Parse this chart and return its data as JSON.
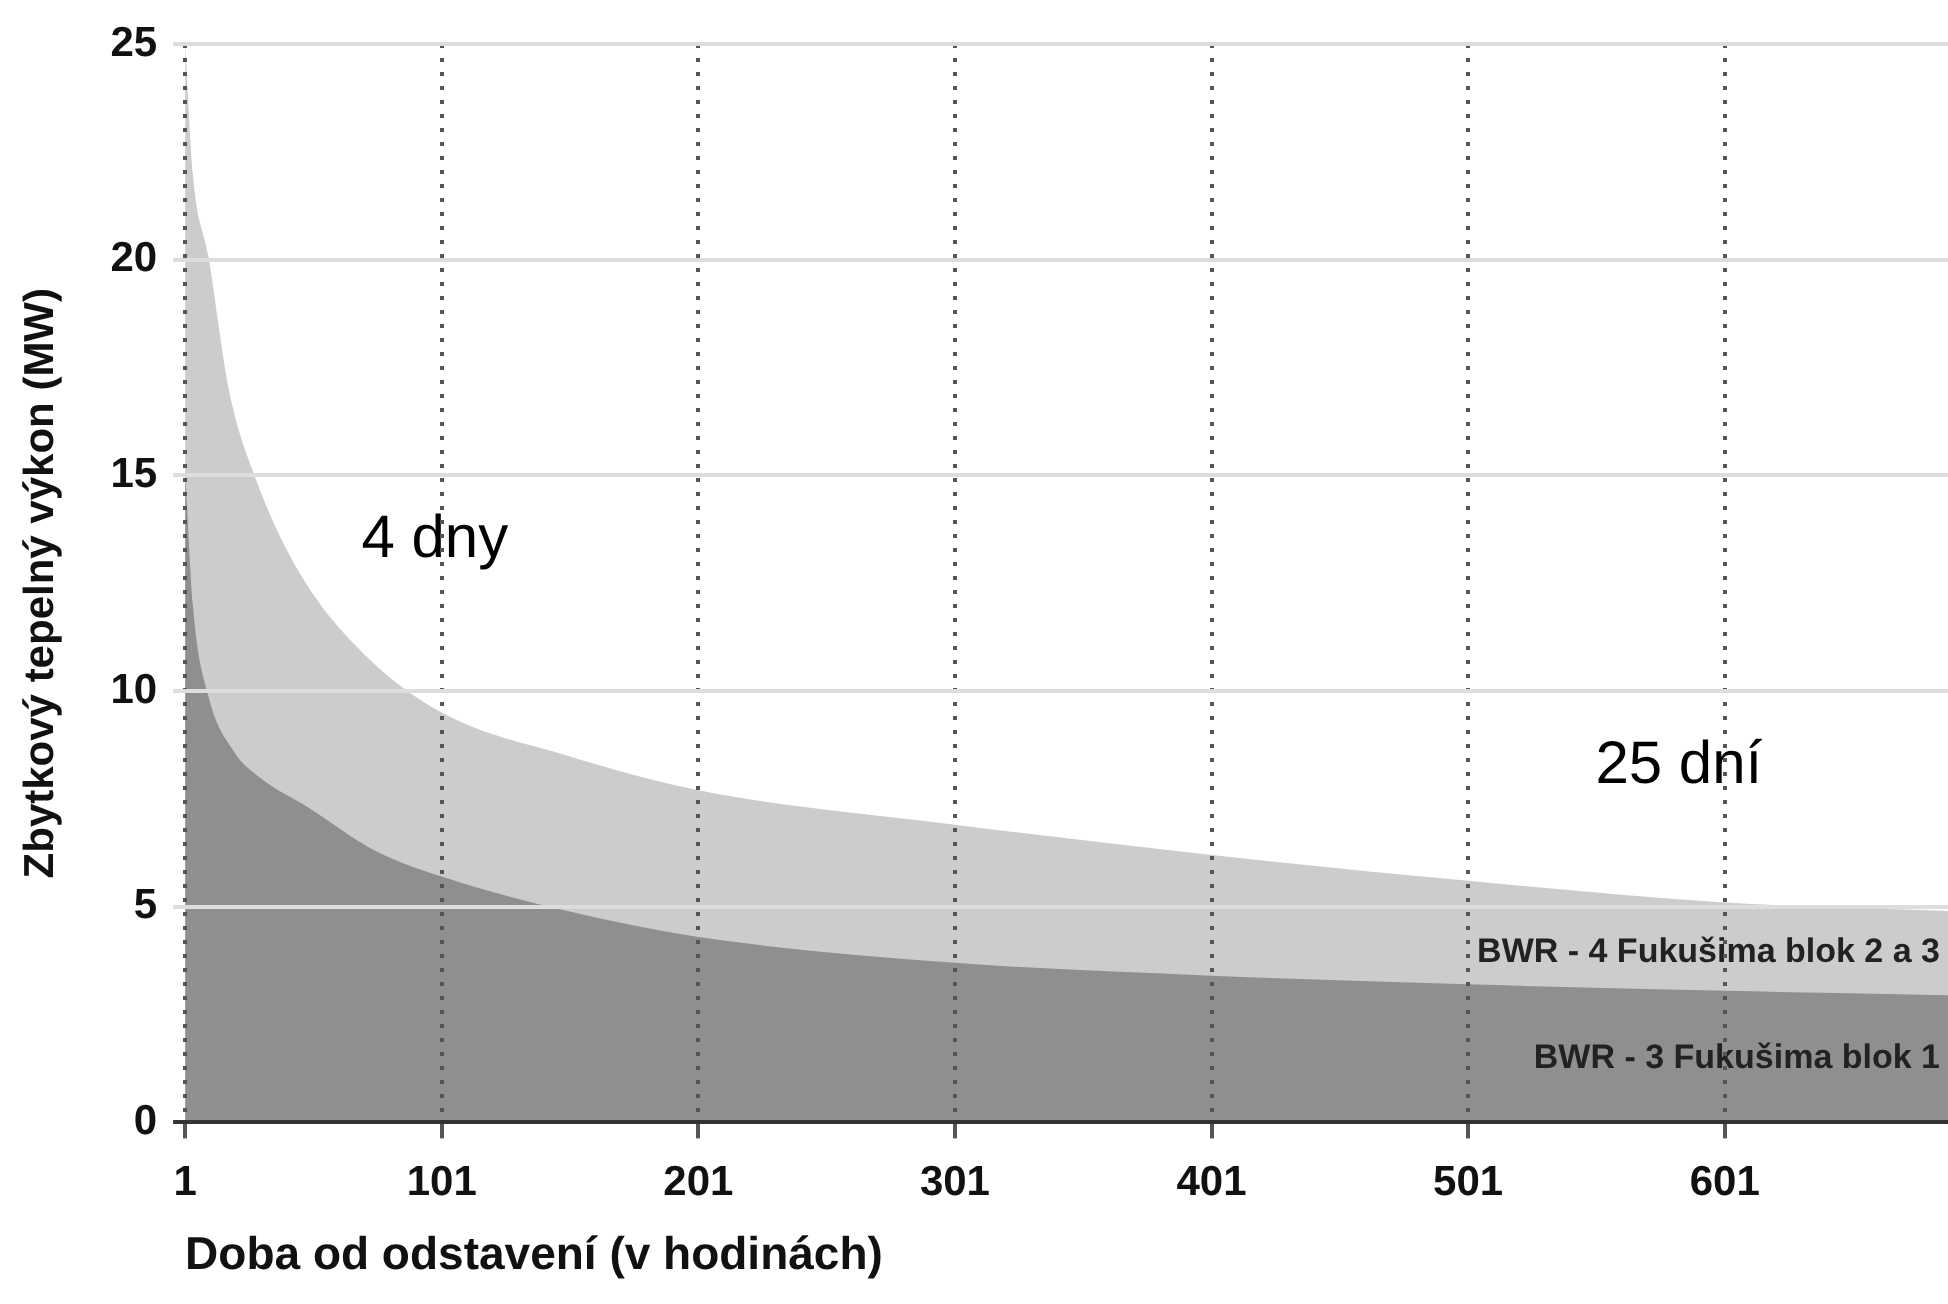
{
  "chart_data": {
    "type": "area",
    "xlabel": "Doba od odstavení (v hodinách)",
    "ylabel": "Zbytkový tepelný výkon (MW)",
    "xlim": [
      1,
      688
    ],
    "xticks": [
      1,
      101,
      201,
      301,
      401,
      501,
      601
    ],
    "ylim": [
      0,
      25
    ],
    "yticks": [
      0,
      5,
      10,
      15,
      20,
      25
    ],
    "grid": true,
    "legend": false,
    "series": [
      {
        "name": "BWR - 4 Fukušima blok 2 a 3",
        "color": "#cccccc",
        "x": [
          1,
          4,
          10,
          18,
          28,
          45,
          70,
          101,
          150,
          201,
          301,
          401,
          501,
          601,
          688
        ],
        "values": [
          25,
          22,
          20.1,
          17,
          15,
          12.8,
          10.9,
          9.5,
          8.5,
          7.7,
          6.9,
          6.2,
          5.6,
          5.1,
          4.9
        ]
      },
      {
        "name": "BWR - 3 Fukušima blok 1",
        "color": "#8f8f8f",
        "x": [
          1,
          4,
          10,
          20,
          30,
          49,
          75,
          101,
          150,
          201,
          301,
          401,
          501,
          601,
          688
        ],
        "values": [
          15.1,
          12,
          9.9,
          8.6,
          8,
          7.3,
          6.3,
          5.7,
          4.9,
          4.3,
          3.7,
          3.4,
          3.2,
          3.05,
          2.95
        ]
      }
    ],
    "annotations": [
      "4 dny",
      "25 dní"
    ]
  }
}
